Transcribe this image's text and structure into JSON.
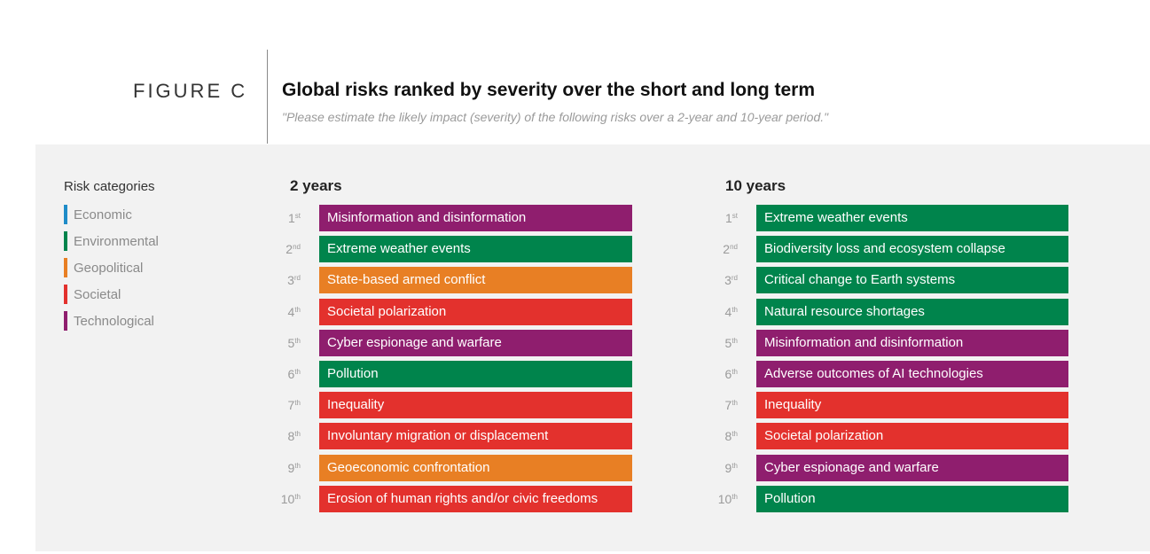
{
  "header": {
    "figure_label": "FIGURE C",
    "title": "Global risks ranked by severity over the short and long term",
    "subtitle": "\"Please estimate the likely impact (severity) of the following risks over a 2-year and 10-year period.\""
  },
  "legend": {
    "title": "Risk categories",
    "items": [
      {
        "label": "Economic",
        "color": "#1f8cc8"
      },
      {
        "label": "Environmental",
        "color": "#00844c"
      },
      {
        "label": "Geopolitical",
        "color": "#e87f24"
      },
      {
        "label": "Societal",
        "color": "#e3312d"
      },
      {
        "label": "Technological",
        "color": "#8f1e6e"
      }
    ]
  },
  "chart_data": {
    "type": "table",
    "title": "Global risks ranked by severity over the short and long term",
    "columns": [
      {
        "title": "2 years",
        "rows": [
          {
            "rank": "1",
            "suffix": "st",
            "risk": "Misinformation and disinformation",
            "category": "Technological"
          },
          {
            "rank": "2",
            "suffix": "nd",
            "risk": "Extreme weather events",
            "category": "Environmental"
          },
          {
            "rank": "3",
            "suffix": "rd",
            "risk": "State-based armed conflict",
            "category": "Geopolitical"
          },
          {
            "rank": "4",
            "suffix": "th",
            "risk": "Societal polarization",
            "category": "Societal"
          },
          {
            "rank": "5",
            "suffix": "th",
            "risk": "Cyber espionage and warfare",
            "category": "Technological"
          },
          {
            "rank": "6",
            "suffix": "th",
            "risk": "Pollution",
            "category": "Environmental"
          },
          {
            "rank": "7",
            "suffix": "th",
            "risk": "Inequality",
            "category": "Societal"
          },
          {
            "rank": "8",
            "suffix": "th",
            "risk": "Involuntary migration or displacement",
            "category": "Societal"
          },
          {
            "rank": "9",
            "suffix": "th",
            "risk": "Geoeconomic confrontation",
            "category": "Geopolitical"
          },
          {
            "rank": "10",
            "suffix": "th",
            "risk": "Erosion of human rights and/or civic freedoms",
            "category": "Societal"
          }
        ]
      },
      {
        "title": "10 years",
        "rows": [
          {
            "rank": "1",
            "suffix": "st",
            "risk": "Extreme weather events",
            "category": "Environmental"
          },
          {
            "rank": "2",
            "suffix": "nd",
            "risk": "Biodiversity loss and ecosystem collapse",
            "category": "Environmental"
          },
          {
            "rank": "3",
            "suffix": "rd",
            "risk": "Critical change to Earth systems",
            "category": "Environmental"
          },
          {
            "rank": "4",
            "suffix": "th",
            "risk": "Natural resource shortages",
            "category": "Environmental"
          },
          {
            "rank": "5",
            "suffix": "th",
            "risk": "Misinformation and disinformation",
            "category": "Technological"
          },
          {
            "rank": "6",
            "suffix": "th",
            "risk": "Adverse outcomes of AI technologies",
            "category": "Technological"
          },
          {
            "rank": "7",
            "suffix": "th",
            "risk": "Inequality",
            "category": "Societal"
          },
          {
            "rank": "8",
            "suffix": "th",
            "risk": "Societal polarization",
            "category": "Societal"
          },
          {
            "rank": "9",
            "suffix": "th",
            "risk": "Cyber espionage and warfare",
            "category": "Technological"
          },
          {
            "rank": "10",
            "suffix": "th",
            "risk": "Pollution",
            "category": "Environmental"
          }
        ]
      }
    ]
  }
}
